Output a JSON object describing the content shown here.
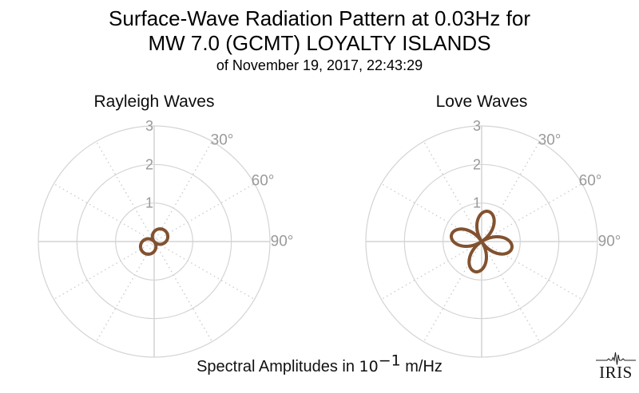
{
  "header": {
    "title_line1": "Surface-Wave Radiation Pattern at 0.03Hz for",
    "title_line2": "MW 7.0 (GCMT) LOYALTY ISLANDS",
    "subtitle": "of November 19, 2017, 22:43:29"
  },
  "footer": {
    "caption_prefix": "Spectral Amplitudes in ",
    "caption_base": "10",
    "caption_exponent": "−1",
    "caption_suffix": " m/Hz",
    "logo_text": "IRIS"
  },
  "colors": {
    "pattern_stroke": "#815230",
    "grid_circle": "#d4d4d4",
    "grid_cross": "#c9c9c9",
    "grid_dotted": "#cbcbcb",
    "tick_label": "#9a9a9a",
    "title_text": "#000000"
  },
  "chart_data": [
    {
      "type": "line",
      "subtype": "polar_radiation_pattern",
      "title": "Rayleigh Waves",
      "r_ticks": [
        "1",
        "2",
        "3"
      ],
      "r_lim": [
        0,
        3
      ],
      "theta_zero": "north",
      "theta_direction": "clockwise",
      "theta_tick_labels": [
        "30°",
        "60°",
        "90°"
      ],
      "theta_tick_angles_deg": [
        30,
        60,
        90
      ],
      "solid_axes_deg": [
        0,
        90,
        180,
        270
      ],
      "dotted_ray_angles_deg": [
        30,
        60,
        120,
        150,
        210,
        240,
        300,
        330
      ],
      "units": "10^-1 m/Hz",
      "pattern": {
        "formula": "r(az) = A * |cos(k * (az - theta0))|",
        "A": 0.4,
        "k": 1,
        "theta0_deg": 50,
        "lobe_azimuths_deg": [
          50,
          230
        ],
        "peak_r": 0.4,
        "samples_step_deg": 15,
        "samples_r": [
          0.257,
          0.327,
          0.376,
          0.399,
          0.394,
          0.363,
          0.306,
          0.229,
          0.137,
          0.035,
          0.069,
          0.169,
          0.257,
          0.327,
          0.376,
          0.399,
          0.394,
          0.363,
          0.306,
          0.229,
          0.137,
          0.035,
          0.069,
          0.169
        ]
      }
    },
    {
      "type": "line",
      "subtype": "polar_radiation_pattern",
      "title": "Love Waves",
      "r_ticks": [
        "1",
        "2",
        "3"
      ],
      "r_lim": [
        0,
        3
      ],
      "theta_zero": "north",
      "theta_direction": "clockwise",
      "theta_tick_labels": [
        "30°",
        "60°",
        "90°"
      ],
      "theta_tick_angles_deg": [
        30,
        60,
        90
      ],
      "solid_axes_deg": [
        0,
        90,
        180,
        270
      ],
      "dotted_ray_angles_deg": [
        30,
        60,
        120,
        150,
        210,
        240,
        300,
        330
      ],
      "units": "10^-1 m/Hz",
      "pattern": {
        "formula": "r(az) = A * |cos(k * (az - theta0))|",
        "A": 0.8,
        "k": 2,
        "theta0_deg": 12,
        "lobe_azimuths_deg": [
          12,
          102,
          192,
          282
        ],
        "peak_r": 0.8,
        "samples_step_deg": 15,
        "samples_r": [
          0.731,
          0.796,
          0.647,
          0.325,
          0.084,
          0.47,
          0.731,
          0.796,
          0.647,
          0.325,
          0.084,
          0.47,
          0.731,
          0.796,
          0.647,
          0.325,
          0.084,
          0.47,
          0.731,
          0.796,
          0.647,
          0.325,
          0.084,
          0.47
        ]
      }
    }
  ]
}
